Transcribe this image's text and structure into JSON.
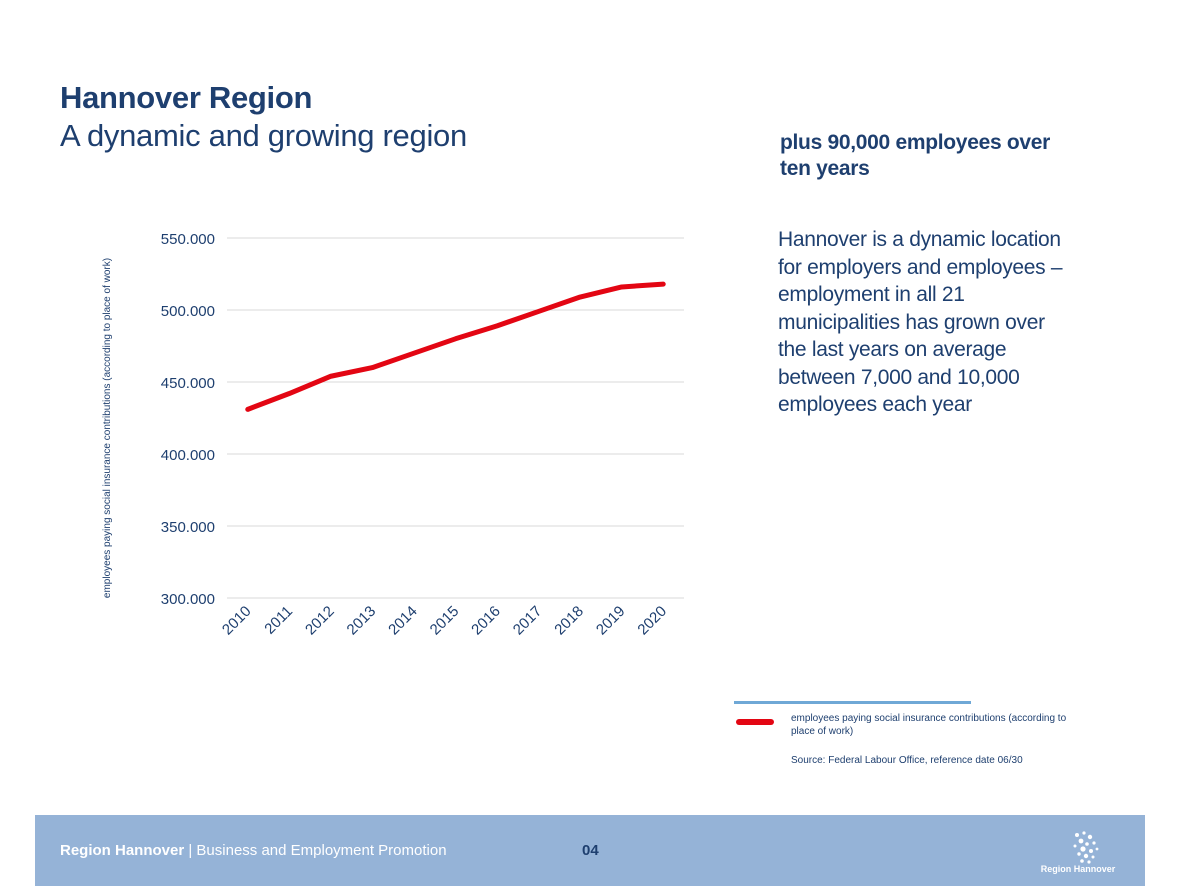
{
  "header": {
    "title": "Hannover Region",
    "subtitle": "A dynamic and growing region"
  },
  "sidebar": {
    "headline": "plus 90,000 employees over ten years",
    "body": "Hannover is a dynamic location for employers and employees – employment in all 21 municipalities has grown over the last years on average between 7,000 and 10,000 employees each year"
  },
  "chart_data": {
    "type": "line",
    "title": "",
    "xlabel": "",
    "ylabel": "employees paying social insurance contributions (according to place of work)",
    "categories": [
      "2010",
      "2011",
      "2012",
      "2013",
      "2014",
      "2015",
      "2016",
      "2017",
      "2018",
      "2019",
      "2020"
    ],
    "y_ticks": [
      "550.000",
      "500.000",
      "450.000",
      "400.000",
      "350.000",
      "300.000"
    ],
    "ylim": [
      300000,
      550000
    ],
    "grid": true,
    "series": [
      {
        "name": "employees paying social insurance contributions (according to place of work)",
        "color": "#e30613",
        "values": [
          431000,
          442000,
          454000,
          460000,
          470000,
          480000,
          489000,
          499000,
          509000,
          516000,
          518000
        ]
      }
    ]
  },
  "legend": {
    "label": "employees paying social insurance contributions (according to place of work)",
    "source": "Source: Federal Labour Office, reference date 06/30"
  },
  "footer": {
    "brand": "Region Hannover",
    "separator": " | ",
    "department": "Business and Employment Promotion",
    "page": "04",
    "logo_text": "Region Hannover"
  }
}
